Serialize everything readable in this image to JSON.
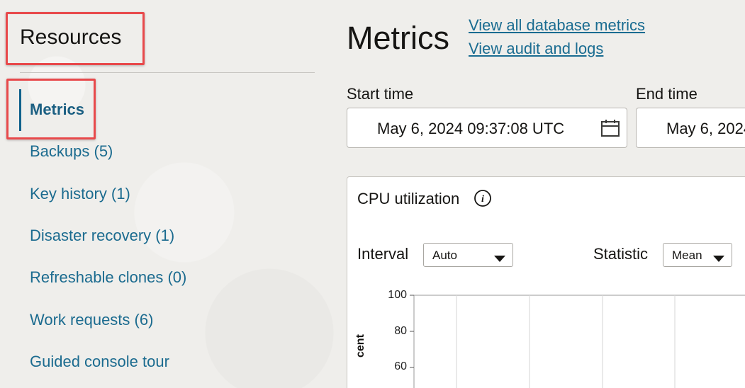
{
  "sidebar": {
    "title": "Resources",
    "items": [
      {
        "label": "Metrics",
        "active": true
      },
      {
        "label": "Backups (5)"
      },
      {
        "label": "Key history (1)"
      },
      {
        "label": "Disaster recovery (1)"
      },
      {
        "label": "Refreshable clones (0)"
      },
      {
        "label": "Work requests (6)"
      },
      {
        "label": "Guided console tour"
      }
    ]
  },
  "main": {
    "title": "Metrics",
    "links": {
      "all_metrics": "View all database metrics",
      "audit_logs": "View audit and logs"
    },
    "start_time": {
      "label": "Start time",
      "value": "May 6, 2024 09:37:08 UTC"
    },
    "end_time": {
      "label": "End time",
      "value": "May 6, 2024"
    }
  },
  "chart_card": {
    "title": "CPU utilization",
    "interval": {
      "label": "Interval",
      "value": "Auto"
    },
    "statistic": {
      "label": "Statistic",
      "value": "Mean"
    }
  },
  "chart_data": {
    "type": "line",
    "title": "CPU utilization",
    "ylabel": "cent",
    "yticks": [
      "100",
      "80",
      "60"
    ],
    "ylim": [
      0,
      100
    ],
    "grid": true,
    "series": []
  },
  "colors": {
    "link": "#1a6c91",
    "highlight": "#e8494b",
    "active_indicator": "#10628c"
  }
}
